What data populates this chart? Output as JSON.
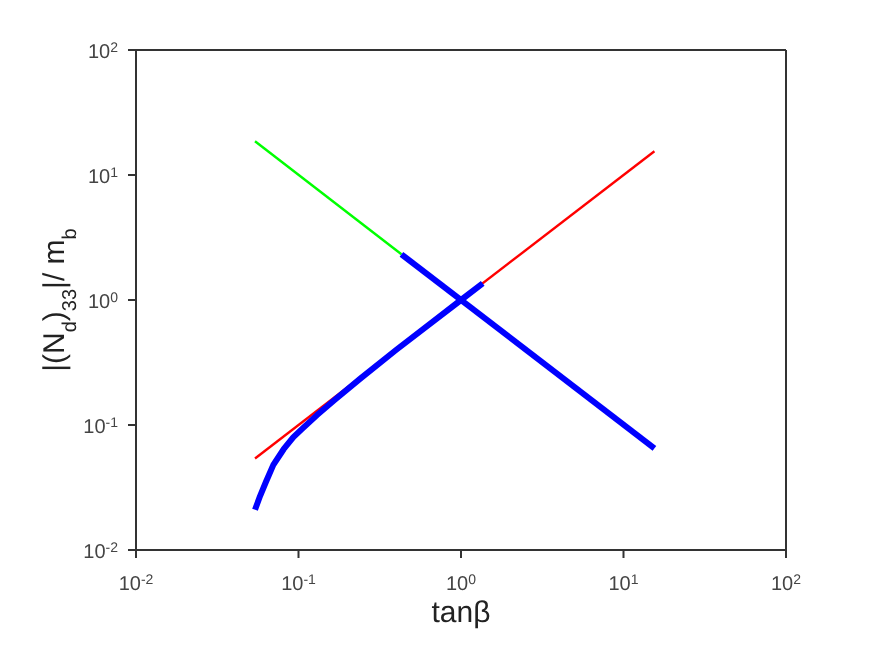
{
  "chart_data": {
    "type": "line",
    "xlabel": "tanβ",
    "ylabel": "|(N$_{d}$)$_{33}$|/ m$_{b}$",
    "log": "xy",
    "marker": "none",
    "line_style": "solid",
    "xlim": [
      0.01,
      100
    ],
    "ylim": [
      0.01,
      100
    ],
    "xticks": [
      {
        "value": 0.01,
        "label": "10$^{-2}$"
      },
      {
        "value": 0.1,
        "label": "10$^{-1}$"
      },
      {
        "value": 1,
        "label": "10$^{0}$"
      },
      {
        "value": 10,
        "label": "10$^{1}$"
      },
      {
        "value": 100,
        "label": "10$^{2}$"
      }
    ],
    "yticks": [
      {
        "value": 0.01,
        "label": "10$^{-2}$"
      },
      {
        "value": 0.1,
        "label": "10$^{-1}$"
      },
      {
        "value": 1,
        "label": "10$^{0}$"
      },
      {
        "value": 10,
        "label": "10$^{1}$"
      },
      {
        "value": 100,
        "label": "10$^{2}$"
      }
    ],
    "series": [
      {
        "color": "#ff0000",
        "x": [
          0.054,
          15.5
        ],
        "values": [
          0.054,
          15.5
        ]
      },
      {
        "color": "#00ff00",
        "x": [
          0.054,
          0.43
        ],
        "values": [
          18.6,
          2.32
        ]
      },
      {
        "color": "#0000ff",
        "x": [
          0.43,
          15.5
        ],
        "values": [
          2.32,
          0.065
        ]
      },
      {
        "color": "#0000ff",
        "x": [
          0.054,
          0.058,
          0.063,
          0.07,
          0.081,
          0.093,
          0.106,
          0.13,
          0.168,
          0.24,
          0.4,
          0.7,
          1.0,
          1.36
        ],
        "values": [
          0.021,
          0.027,
          0.035,
          0.048,
          0.064,
          0.08,
          0.094,
          0.12,
          0.16,
          0.235,
          0.4,
          0.7,
          1.0,
          1.36
        ]
      }
    ]
  }
}
